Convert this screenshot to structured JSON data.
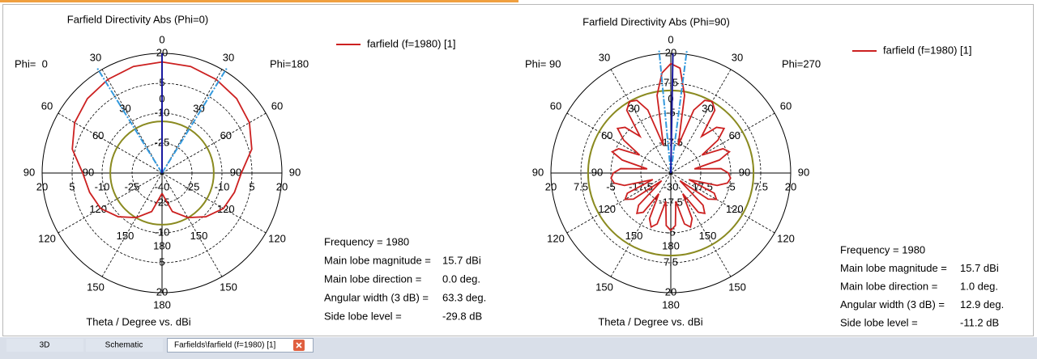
{
  "window": {
    "tabs": [
      "3D",
      "Schematic",
      "Farfields\\farfield (f=1980) [1]"
    ]
  },
  "chart_data": [
    {
      "type": "polar",
      "title": "Farfield Directivity Abs (Phi=0)",
      "phi_left": "Phi=  0",
      "phi_right": "Phi=180",
      "xlabel": "Theta / Degree vs. dBi",
      "xlim": [
        -180,
        180
      ],
      "xticks": [
        0,
        30,
        60,
        90,
        120,
        150,
        180
      ],
      "ylim": [
        -40,
        20
      ],
      "yticks": [
        -40,
        -25,
        -10,
        5,
        20
      ],
      "x": [
        -180,
        -165,
        -150,
        -135,
        -120,
        -105,
        -90,
        -75,
        -60,
        -45,
        -30,
        -15,
        0,
        15,
        30,
        45,
        60,
        75,
        90,
        105,
        120,
        135,
        150,
        165,
        180
      ],
      "series": [
        {
          "name": "farfield (f=1980) [1]",
          "color": "#cc2020",
          "values": [
            -29.8,
            -20,
            -14.2,
            -9,
            -4.5,
            -2.5,
            -0.3,
            6.5,
            10.5,
            12.8,
            14.2,
            15.3,
            15.7,
            15.3,
            14.2,
            12.8,
            10.5,
            6.5,
            -0.3,
            -2.5,
            -4.5,
            -9,
            -14.2,
            -20,
            -29.8
          ]
        }
      ],
      "main_lobe_direction": 0.0,
      "angular_width": 63.3,
      "threshold": -14.1,
      "main_lobe_color": "#1a1aa0",
      "beam_color": "#3399dd",
      "threshold_color": "#8a8a20",
      "info": [
        {
          "label": "Frequency = 1980"
        },
        {
          "label": "Main lobe magnitude =",
          "value": "15.7 dBi"
        },
        {
          "label": "Main lobe direction =",
          "value": "0.0 deg."
        },
        {
          "label": "Angular width (3 dB) =",
          "value": "63.3 deg."
        },
        {
          "label": "Side lobe level =",
          "value": "-29.8 dB"
        }
      ]
    },
    {
      "type": "polar",
      "title": "Farfield Directivity Abs (Phi=90)",
      "phi_left": "Phi= 90",
      "phi_right": "Phi=270",
      "xlabel": "Theta / Degree vs. dBi",
      "xlim": [
        -180,
        180
      ],
      "xticks": [
        0,
        30,
        60,
        90,
        120,
        150,
        180
      ],
      "ylim": [
        -30,
        20
      ],
      "yticks": [
        -30,
        -17.5,
        -5,
        7.5,
        20
      ],
      "x": [
        -180,
        -175,
        -170,
        -165,
        -160,
        -155,
        -150,
        -145,
        -140,
        -135,
        -130,
        -125,
        -120,
        -115,
        -110,
        -105,
        -100,
        -95,
        -90,
        -85,
        -80,
        -75,
        -70,
        -65,
        -60,
        -55,
        -50,
        -45,
        -40,
        -35,
        -30,
        -25,
        -20,
        -15,
        -10,
        -5,
        0,
        5,
        10,
        15,
        20,
        25,
        30,
        35,
        40,
        45,
        50,
        55,
        60,
        65,
        70,
        75,
        80,
        85,
        90,
        95,
        100,
        105,
        110,
        115,
        120,
        125,
        130,
        135,
        140,
        145,
        150,
        155,
        160,
        165,
        170,
        175,
        180
      ],
      "series": [
        {
          "name": "farfield (f=1980) [1]",
          "color": "#cc2020",
          "values": [
            -6,
            -8,
            -18,
            -8,
            -6,
            -9,
            -20,
            -10,
            -8,
            -11,
            -25,
            -11,
            -8,
            -10,
            -22,
            -10,
            -6,
            -5,
            -6,
            -9,
            -20,
            -9,
            -4,
            -6,
            -15,
            -6,
            -1,
            -3,
            -10,
            2,
            4.5,
            3.5,
            -2,
            -18,
            3,
            12,
            15.7,
            14,
            3,
            -18,
            -2,
            3.5,
            4.5,
            2,
            -10,
            -3,
            -1,
            -6,
            -15,
            -6,
            -4,
            -9,
            -20,
            -9,
            -6,
            -5,
            -6,
            -10,
            -22,
            -10,
            -8,
            -11,
            -25,
            -11,
            -8,
            -10,
            -20,
            -9,
            -6,
            -8,
            -18,
            -8,
            -6
          ]
        }
      ],
      "main_lobe_direction": 1.0,
      "angular_width": 12.9,
      "threshold": 4.5,
      "main_lobe_color": "#1a1aa0",
      "beam_color": "#3399dd",
      "threshold_color": "#8a8a20",
      "info": [
        {
          "label": "Frequency = 1980"
        },
        {
          "label": "Main lobe magnitude =",
          "value": "15.7 dBi"
        },
        {
          "label": "Main lobe direction =",
          "value": "1.0 deg."
        },
        {
          "label": "Angular width (3 dB) =",
          "value": "12.9 deg."
        },
        {
          "label": "Side lobe level =",
          "value": "-11.2 dB"
        }
      ]
    }
  ]
}
